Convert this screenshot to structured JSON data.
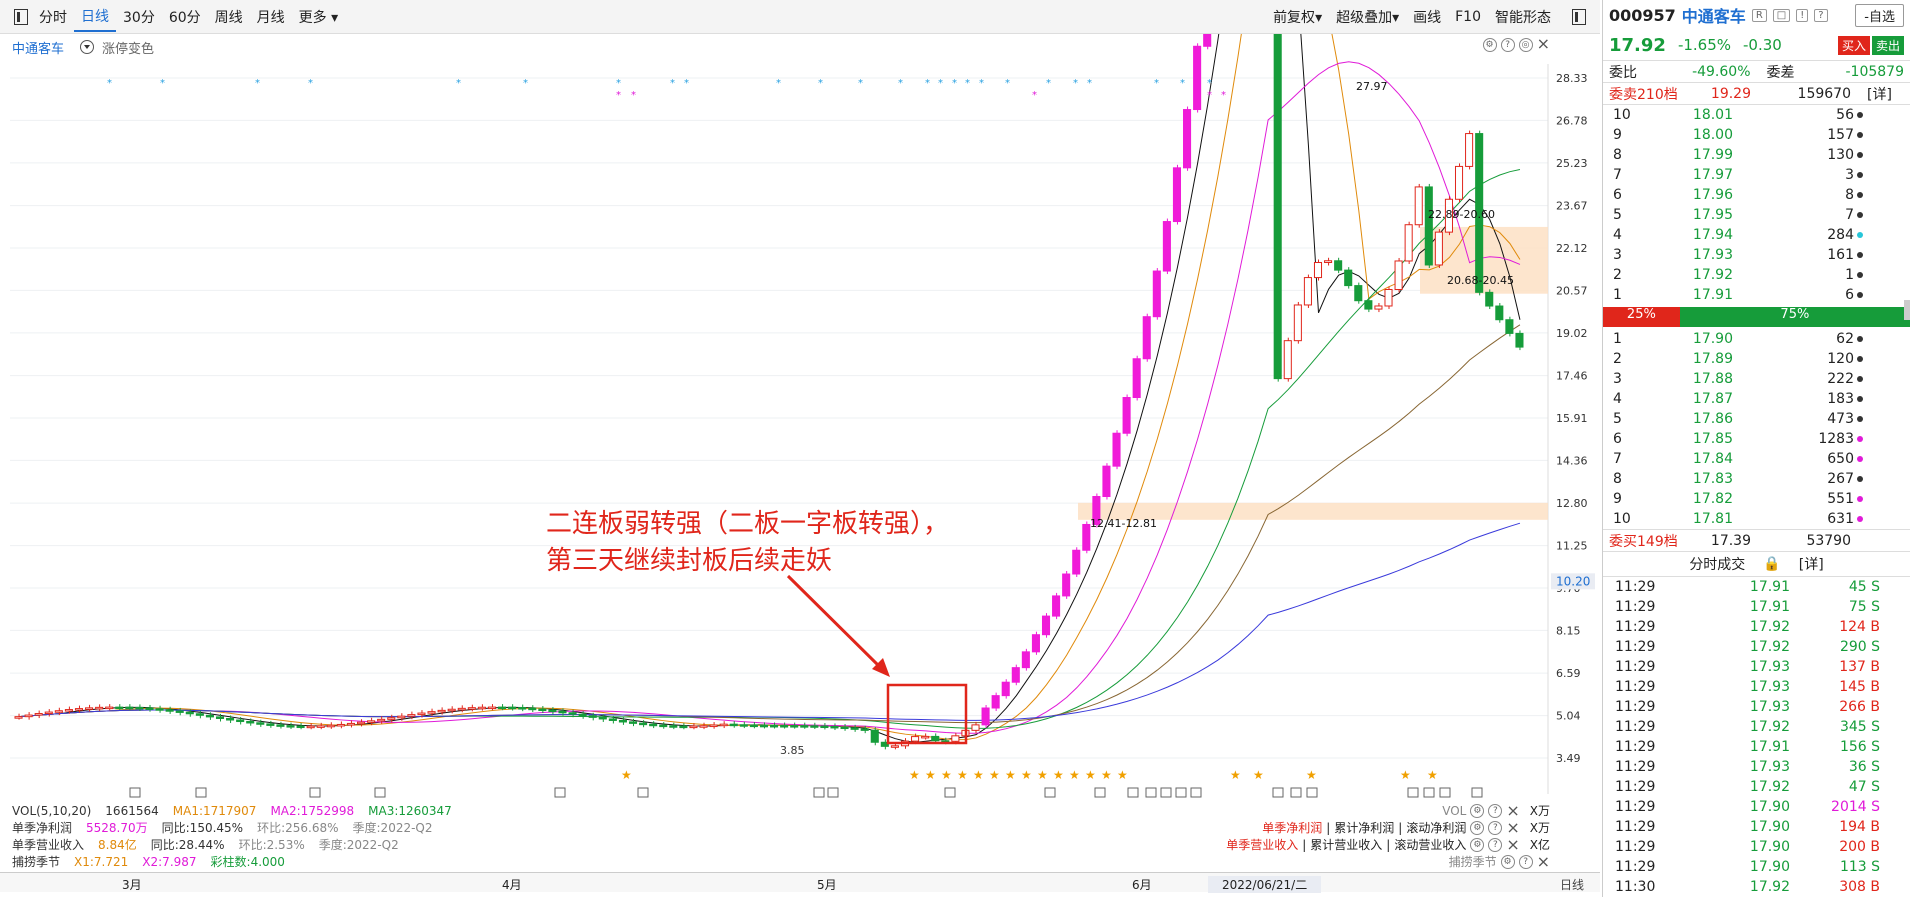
{
  "toolbar": {
    "tabs": [
      "分时",
      "日线",
      "30分",
      "60分",
      "周线",
      "月线",
      "更多"
    ],
    "active_tab": "日线",
    "right_items": [
      "前复权",
      "超级叠加",
      "画线",
      "F10",
      "智能形态"
    ]
  },
  "chart_head": {
    "stock": "中通客车",
    "indicator": "涨停变色"
  },
  "chart_data": {
    "type": "candlestick",
    "price_axis": [
      "28.33",
      "26.78",
      "25.23",
      "23.67",
      "22.12",
      "20.57",
      "19.02",
      "17.46",
      "15.91",
      "14.36",
      "12.80",
      "11.25",
      "9.70",
      "8.15",
      "6.59",
      "5.04",
      "3.49"
    ],
    "ylim": [
      3.49,
      28.33
    ],
    "current_price_tag": "10.20",
    "annotations": {
      "high_label": "27.97",
      "low_label": "3.85",
      "zone1_label": "22.89-20.60",
      "zone2_label": "20.68-20.45",
      "zone3_label": "12.41-12.81",
      "note_line1": "二连板弱转强（二板一字板转强），",
      "note_line2": "第三天继续封板后续走妖"
    },
    "x_months": [
      "3月",
      "4月",
      "5月",
      "6月"
    ],
    "cursor_date": "2022/06/21/二"
  },
  "indicators": {
    "vol": {
      "name": "VOL(5,10,20)",
      "value": "1661564",
      "ma1": "MA1:1717907",
      "ma2": "MA2:1752998",
      "ma3": "MA3:1260347"
    },
    "profit": {
      "name": "单季净利润",
      "value": "5528.70万",
      "yoy": "同比:150.45%",
      "qoq": "环比:256.68%",
      "q": "季度:2022-Q2"
    },
    "revenue": {
      "name": "单季营业收入",
      "value": "8.84亿",
      "yoy": "同比:28.44%",
      "qoq": "环比:2.53%",
      "q": "季度:2022-Q2"
    },
    "season": {
      "name": "捕捞季节",
      "x1": "X1:7.721",
      "x2": "X2:7.987",
      "bar": "彩柱数:4.000"
    },
    "right_vol": "VOL",
    "right_profit": [
      "单季净利润",
      "累计净利润",
      "滚动净利润"
    ],
    "right_rev": [
      "单季营业收入",
      "累计营业收入",
      "滚动营业收入"
    ],
    "right_season": "捕捞季节",
    "units": [
      "X万",
      "X万",
      "X亿"
    ]
  },
  "date_axis_label": "日线",
  "panel": {
    "code": "000957",
    "name": "中通客车",
    "fav": "-自选",
    "last": "17.92",
    "chg_pct": "-1.65%",
    "chg": "-0.30",
    "buy": "买入",
    "sell": "卖出",
    "weibi_label": "委比",
    "weibi": "-49.60%",
    "weicha_label": "委差",
    "weicha": "-105879",
    "sell_total_label": "委卖210档",
    "sell_total_price": "19.29",
    "sell_total_vol": "159670",
    "detail": "[详]",
    "asks": [
      {
        "lv": "10",
        "p": "18.01",
        "v": "56",
        "dot": ""
      },
      {
        "lv": "9",
        "p": "18.00",
        "v": "157",
        "dot": ""
      },
      {
        "lv": "8",
        "p": "17.99",
        "v": "130",
        "dot": ""
      },
      {
        "lv": "7",
        "p": "17.97",
        "v": "3",
        "dot": ""
      },
      {
        "lv": "6",
        "p": "17.96",
        "v": "8",
        "dot": ""
      },
      {
        "lv": "5",
        "p": "17.95",
        "v": "7",
        "dot": ""
      },
      {
        "lv": "4",
        "p": "17.94",
        "v": "284",
        "dot": "cyan"
      },
      {
        "lv": "3",
        "p": "17.93",
        "v": "161",
        "dot": ""
      },
      {
        "lv": "2",
        "p": "17.92",
        "v": "1",
        "dot": ""
      },
      {
        "lv": "1",
        "p": "17.91",
        "v": "6",
        "dot": ""
      }
    ],
    "ratio_buy": "25%",
    "ratio_sell": "75%",
    "bids": [
      {
        "lv": "1",
        "p": "17.90",
        "v": "62",
        "dot": ""
      },
      {
        "lv": "2",
        "p": "17.89",
        "v": "120",
        "dot": ""
      },
      {
        "lv": "3",
        "p": "17.88",
        "v": "222",
        "dot": ""
      },
      {
        "lv": "4",
        "p": "17.87",
        "v": "183",
        "dot": ""
      },
      {
        "lv": "5",
        "p": "17.86",
        "v": "473",
        "dot": ""
      },
      {
        "lv": "6",
        "p": "17.85",
        "v": "1283",
        "dot": "pink"
      },
      {
        "lv": "7",
        "p": "17.84",
        "v": "650",
        "dot": "pink"
      },
      {
        "lv": "8",
        "p": "17.83",
        "v": "267",
        "dot": ""
      },
      {
        "lv": "9",
        "p": "17.82",
        "v": "551",
        "dot": "pink"
      },
      {
        "lv": "10",
        "p": "17.81",
        "v": "631",
        "dot": "pink"
      }
    ],
    "buy_total_label": "委买149档",
    "buy_total_price": "17.39",
    "buy_total_vol": "53790",
    "ticks_title": "分时成交",
    "ticks_detail": "[详]",
    "ticks": [
      {
        "t": "11:29",
        "p": "17.91",
        "v": "45 S",
        "c": "green",
        "vc": "green"
      },
      {
        "t": "11:29",
        "p": "17.91",
        "v": "75 S",
        "c": "green",
        "vc": "green"
      },
      {
        "t": "11:29",
        "p": "17.92",
        "v": "124 B",
        "c": "green",
        "vc": "red"
      },
      {
        "t": "11:29",
        "p": "17.92",
        "v": "290 S",
        "c": "green",
        "vc": "green"
      },
      {
        "t": "11:29",
        "p": "17.93",
        "v": "137 B",
        "c": "green",
        "vc": "red"
      },
      {
        "t": "11:29",
        "p": "17.93",
        "v": "145 B",
        "c": "green",
        "vc": "red"
      },
      {
        "t": "11:29",
        "p": "17.93",
        "v": "266 B",
        "c": "green",
        "vc": "red"
      },
      {
        "t": "11:29",
        "p": "17.92",
        "v": "345 S",
        "c": "green",
        "vc": "green"
      },
      {
        "t": "11:29",
        "p": "17.91",
        "v": "156 S",
        "c": "green",
        "vc": "green"
      },
      {
        "t": "11:29",
        "p": "17.93",
        "v": "36 S",
        "c": "green",
        "vc": "green"
      },
      {
        "t": "11:29",
        "p": "17.92",
        "v": "47 S",
        "c": "green",
        "vc": "green"
      },
      {
        "t": "11:29",
        "p": "17.90",
        "v": "2014 S",
        "c": "green",
        "vc": "pink"
      },
      {
        "t": "11:29",
        "p": "17.90",
        "v": "194 B",
        "c": "green",
        "vc": "red"
      },
      {
        "t": "11:29",
        "p": "17.90",
        "v": "200 B",
        "c": "green",
        "vc": "red"
      },
      {
        "t": "11:29",
        "p": "17.90",
        "v": "113 S",
        "c": "green",
        "vc": "green"
      },
      {
        "t": "11:30",
        "p": "17.92",
        "v": "308 B",
        "c": "green",
        "vc": "red"
      }
    ]
  }
}
